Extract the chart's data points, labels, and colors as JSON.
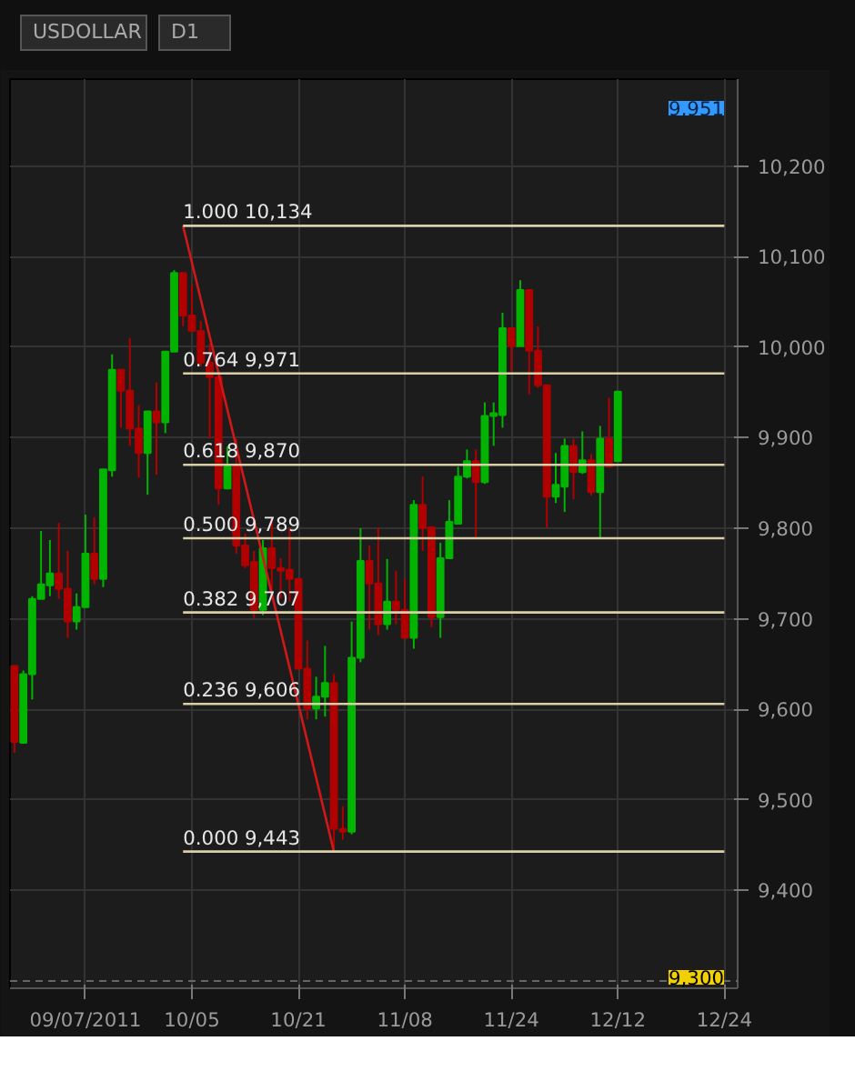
{
  "chart_data": {
    "type": "candlestick",
    "title": "USDOLLAR",
    "subtitle": "D1",
    "categories": [
      null,
      null,
      null,
      null,
      null,
      null,
      null,
      null,
      "09/07/2011",
      null,
      null,
      null,
      null,
      null,
      null,
      null,
      null,
      null,
      null,
      null,
      "10/05",
      null,
      null,
      null,
      null,
      null,
      null,
      null,
      null,
      null,
      null,
      null,
      "10/21",
      null,
      null,
      null,
      null,
      null,
      null,
      null,
      null,
      null,
      null,
      null,
      "11/08",
      null,
      null,
      null,
      null,
      null,
      null,
      null,
      null,
      null,
      null,
      null,
      "11/24",
      null,
      null,
      null,
      null,
      null,
      null,
      null,
      null,
      null,
      null,
      null,
      "12/12",
      null,
      null,
      null,
      null,
      null,
      null,
      null,
      null,
      null,
      null,
      null,
      "12/24"
    ],
    "ohlc": [
      [
        9648,
        9648,
        9552,
        9564
      ],
      [
        9563,
        9643,
        9563,
        9639
      ],
      [
        9639,
        9725,
        9611,
        9722
      ],
      [
        9722,
        9797,
        9722,
        9738
      ],
      [
        9737,
        9787,
        9725,
        9750
      ],
      [
        9750,
        9806,
        9722,
        9733
      ],
      [
        9733,
        9775,
        9679,
        9697
      ],
      [
        9697,
        9728,
        9688,
        9713
      ],
      [
        9713,
        9815,
        9713,
        9772
      ],
      [
        9772,
        9812,
        9738,
        9744
      ],
      [
        9744,
        9865,
        9735,
        9865
      ],
      [
        9864,
        9992,
        9857,
        9975
      ],
      [
        9975,
        9975,
        9911,
        9952
      ],
      [
        9952,
        10010,
        9891,
        9910
      ],
      [
        9910,
        9936,
        9856,
        9883
      ],
      [
        9883,
        9929,
        9837,
        9929
      ],
      [
        9929,
        9961,
        9859,
        9917
      ],
      [
        9917,
        9995,
        9905,
        9995
      ],
      [
        9995,
        10085,
        9995,
        10082
      ],
      [
        10082,
        10082,
        10023,
        10035
      ],
      [
        10035,
        10069,
        10017,
        10018
      ],
      [
        10018,
        10029,
        9979,
        9983
      ],
      [
        9983,
        10004,
        9899,
        9967
      ],
      [
        9967,
        9967,
        9826,
        9844
      ],
      [
        9844,
        9890,
        9843,
        9868
      ],
      [
        9868,
        9899,
        9772,
        9781
      ],
      [
        9781,
        9794,
        9756,
        9759
      ],
      [
        9763,
        9775,
        9701,
        9710
      ],
      [
        9710,
        9787,
        9704,
        9778
      ],
      [
        9778,
        9812,
        9725,
        9756
      ],
      [
        9756,
        9767,
        9722,
        9753
      ],
      [
        9754,
        9800,
        9719,
        9744
      ],
      [
        9744,
        9744,
        9645,
        9645
      ],
      [
        9645,
        9676,
        9589,
        9601
      ],
      [
        9601,
        9636,
        9589,
        9614
      ],
      [
        9614,
        9670,
        9592,
        9629
      ],
      [
        9629,
        9639,
        9443,
        9468
      ],
      [
        9468,
        9493,
        9456,
        9465
      ],
      [
        9465,
        9697,
        9462,
        9657
      ],
      [
        9657,
        9800,
        9652,
        9764
      ],
      [
        9764,
        9781,
        9688,
        9739
      ],
      [
        9739,
        9801,
        9682,
        9694
      ],
      [
        9694,
        9766,
        9688,
        9719
      ],
      [
        9719,
        9753,
        9694,
        9710
      ],
      [
        9710,
        9744,
        9679,
        9679
      ],
      [
        9679,
        9831,
        9667,
        9826
      ],
      [
        9826,
        9857,
        9775,
        9800
      ],
      [
        9801,
        9801,
        9691,
        9702
      ],
      [
        9702,
        9784,
        9679,
        9767
      ],
      [
        9767,
        9831,
        9766,
        9807
      ],
      [
        9805,
        9868,
        9805,
        9857
      ],
      [
        9857,
        9887,
        9855,
        9874
      ],
      [
        9874,
        9887,
        9790,
        9851
      ],
      [
        9851,
        9939,
        9849,
        9924
      ],
      [
        9924,
        9939,
        9891,
        9927
      ],
      [
        9925,
        10038,
        9911,
        10021
      ],
      [
        10021,
        10021,
        9973,
        10001
      ],
      [
        10001,
        10074,
        10001,
        10063
      ],
      [
        10063,
        10063,
        9948,
        9996
      ],
      [
        9996,
        10023,
        9955,
        9958
      ],
      [
        9958,
        9958,
        9801,
        9835
      ],
      [
        9835,
        9883,
        9828,
        9848
      ],
      [
        9846,
        9899,
        9818,
        9891
      ],
      [
        9891,
        9899,
        9832,
        9862
      ],
      [
        9862,
        9907,
        9860,
        9875
      ],
      [
        9875,
        9882,
        9836,
        9840
      ],
      [
        9840,
        9913,
        9789,
        9899
      ],
      [
        9899,
        9944,
        9868,
        9868
      ],
      [
        9874,
        9951,
        9874,
        9951
      ],
      null,
      null,
      null,
      null,
      null,
      null,
      null,
      null,
      null,
      null,
      null,
      null
    ],
    "series": [
      {
        "type": "line",
        "color": "#d01818",
        "values": [
          null,
          null,
          null,
          null,
          null,
          null,
          null,
          null,
          null,
          null,
          null,
          null,
          null,
          null,
          null,
          null,
          null,
          null,
          null,
          10134,
          null,
          null,
          null,
          null,
          null,
          null,
          null,
          null,
          null,
          null,
          null,
          null,
          null,
          null,
          null,
          null,
          9443,
          null,
          null,
          null,
          null,
          null,
          null,
          null,
          null,
          null,
          null,
          null,
          null,
          null,
          null,
          null,
          null,
          null,
          null,
          null,
          null,
          null,
          null,
          null,
          null,
          null,
          null,
          null,
          null,
          null,
          null,
          null,
          null,
          null,
          null,
          null,
          null,
          null,
          null,
          null,
          null,
          null,
          null,
          null,
          null
        ]
      },
      {
        "type": "line",
        "name": "1.000 10,134",
        "color": "#d8cfa8",
        "values": [
          null,
          null,
          null,
          null,
          null,
          null,
          null,
          null,
          null,
          null,
          null,
          null,
          null,
          null,
          null,
          null,
          null,
          null,
          null,
          10134,
          10134,
          10134,
          10134,
          10134,
          10134,
          10134,
          10134,
          10134,
          10134,
          10134,
          10134,
          10134,
          10134,
          10134,
          10134,
          10134,
          10134,
          10134,
          10134,
          10134,
          10134,
          10134,
          10134,
          10134,
          10134,
          10134,
          10134,
          10134,
          10134,
          10134,
          10134,
          10134,
          10134,
          10134,
          10134,
          10134,
          10134,
          10134,
          10134,
          10134,
          10134,
          10134,
          10134,
          10134,
          10134,
          10134,
          10134,
          10134,
          10134,
          10134,
          10134,
          10134,
          10134,
          10134,
          10134,
          10134,
          10134,
          10134,
          10134,
          10134,
          10134
        ]
      },
      {
        "type": "line",
        "name": "0.764 9,971",
        "color": "#d8cfa8",
        "values": [
          null,
          null,
          null,
          null,
          null,
          null,
          null,
          null,
          null,
          null,
          null,
          null,
          null,
          null,
          null,
          null,
          null,
          null,
          null,
          9971,
          9971,
          9971,
          9971,
          9971,
          9971,
          9971,
          9971,
          9971,
          9971,
          9971,
          9971,
          9971,
          9971,
          9971,
          9971,
          9971,
          9971,
          9971,
          9971,
          9971,
          9971,
          9971,
          9971,
          9971,
          9971,
          9971,
          9971,
          9971,
          9971,
          9971,
          9971,
          9971,
          9971,
          9971,
          9971,
          9971,
          9971,
          9971,
          9971,
          9971,
          9971,
          9971,
          9971,
          9971,
          9971,
          9971,
          9971,
          9971,
          9971,
          9971,
          9971,
          9971,
          9971,
          9971,
          9971,
          9971,
          9971,
          9971,
          9971,
          9971,
          9971
        ]
      },
      {
        "type": "line",
        "name": "0.618 9,870",
        "color": "#d8cfa8",
        "values": [
          null,
          null,
          null,
          null,
          null,
          null,
          null,
          null,
          null,
          null,
          null,
          null,
          null,
          null,
          null,
          null,
          null,
          null,
          null,
          9870,
          9870,
          9870,
          9870,
          9870,
          9870,
          9870,
          9870,
          9870,
          9870,
          9870,
          9870,
          9870,
          9870,
          9870,
          9870,
          9870,
          9870,
          9870,
          9870,
          9870,
          9870,
          9870,
          9870,
          9870,
          9870,
          9870,
          9870,
          9870,
          9870,
          9870,
          9870,
          9870,
          9870,
          9870,
          9870,
          9870,
          9870,
          9870,
          9870,
          9870,
          9870,
          9870,
          9870,
          9870,
          9870,
          9870,
          9870,
          9870,
          9870,
          9870,
          9870,
          9870,
          9870,
          9870,
          9870,
          9870,
          9870,
          9870,
          9870,
          9870,
          9870
        ]
      },
      {
        "type": "line",
        "name": "0.500 9,789",
        "color": "#d8cfa8",
        "values": [
          null,
          null,
          null,
          null,
          null,
          null,
          null,
          null,
          null,
          null,
          null,
          null,
          null,
          null,
          null,
          null,
          null,
          null,
          null,
          9789,
          9789,
          9789,
          9789,
          9789,
          9789,
          9789,
          9789,
          9789,
          9789,
          9789,
          9789,
          9789,
          9789,
          9789,
          9789,
          9789,
          9789,
          9789,
          9789,
          9789,
          9789,
          9789,
          9789,
          9789,
          9789,
          9789,
          9789,
          9789,
          9789,
          9789,
          9789,
          9789,
          9789,
          9789,
          9789,
          9789,
          9789,
          9789,
          9789,
          9789,
          9789,
          9789,
          9789,
          9789,
          9789,
          9789,
          9789,
          9789,
          9789,
          9789,
          9789,
          9789,
          9789,
          9789,
          9789,
          9789,
          9789,
          9789,
          9789,
          9789,
          9789
        ]
      },
      {
        "type": "line",
        "name": "0.382 9,707",
        "color": "#d8cfa8",
        "values": [
          null,
          null,
          null,
          null,
          null,
          null,
          null,
          null,
          null,
          null,
          null,
          null,
          null,
          null,
          null,
          null,
          null,
          null,
          null,
          9707,
          9707,
          9707,
          9707,
          9707,
          9707,
          9707,
          9707,
          9707,
          9707,
          9707,
          9707,
          9707,
          9707,
          9707,
          9707,
          9707,
          9707,
          9707,
          9707,
          9707,
          9707,
          9707,
          9707,
          9707,
          9707,
          9707,
          9707,
          9707,
          9707,
          9707,
          9707,
          9707,
          9707,
          9707,
          9707,
          9707,
          9707,
          9707,
          9707,
          9707,
          9707,
          9707,
          9707,
          9707,
          9707,
          9707,
          9707,
          9707,
          9707,
          9707,
          9707,
          9707,
          9707,
          9707,
          9707,
          9707,
          9707,
          9707,
          9707,
          9707,
          9707
        ]
      },
      {
        "type": "line",
        "name": "0.236 9,606",
        "color": "#d8cfa8",
        "values": [
          null,
          null,
          null,
          null,
          null,
          null,
          null,
          null,
          null,
          null,
          null,
          null,
          null,
          null,
          null,
          null,
          null,
          null,
          null,
          9606,
          9606,
          9606,
          9606,
          9606,
          9606,
          9606,
          9606,
          9606,
          9606,
          9606,
          9606,
          9606,
          9606,
          9606,
          9606,
          9606,
          9606,
          9606,
          9606,
          9606,
          9606,
          9606,
          9606,
          9606,
          9606,
          9606,
          9606,
          9606,
          9606,
          9606,
          9606,
          9606,
          9606,
          9606,
          9606,
          9606,
          9606,
          9606,
          9606,
          9606,
          9606,
          9606,
          9606,
          9606,
          9606,
          9606,
          9606,
          9606,
          9606,
          9606,
          9606,
          9606,
          9606,
          9606,
          9606,
          9606,
          9606,
          9606,
          9606,
          9606,
          9606
        ]
      },
      {
        "type": "line",
        "name": "0.000 9,443",
        "color": "#d8cfa8",
        "values": [
          null,
          null,
          null,
          null,
          null,
          null,
          null,
          null,
          null,
          null,
          null,
          null,
          null,
          null,
          null,
          null,
          null,
          null,
          null,
          9443,
          9443,
          9443,
          9443,
          9443,
          9443,
          9443,
          9443,
          9443,
          9443,
          9443,
          9443,
          9443,
          9443,
          9443,
          9443,
          9443,
          9443,
          9443,
          9443,
          9443,
          9443,
          9443,
          9443,
          9443,
          9443,
          9443,
          9443,
          9443,
          9443,
          9443,
          9443,
          9443,
          9443,
          9443,
          9443,
          9443,
          9443,
          9443,
          9443,
          9443,
          9443,
          9443,
          9443,
          9443,
          9443,
          9443,
          9443,
          9443,
          9443,
          9443,
          9443,
          9443,
          9443,
          9443,
          9443,
          9443,
          9443,
          9443,
          9443,
          9443,
          9443
        ]
      }
    ],
    "ylim": [
      9292,
      10296
    ],
    "yticks": [
      {
        "value": 9400,
        "label": "9,400"
      },
      {
        "value": 9500,
        "label": "9,500"
      },
      {
        "value": 9600,
        "label": "9,600"
      },
      {
        "value": 9700,
        "label": "9,700"
      },
      {
        "value": 9800,
        "label": "9,800"
      },
      {
        "value": 9900,
        "label": "9,900"
      },
      {
        "value": 10000,
        "label": "10,000"
      },
      {
        "value": 10100,
        "label": "10,100"
      },
      {
        "value": 10200,
        "label": "10,200"
      }
    ],
    "ref_lines": [
      {
        "axis": "y",
        "value": 9300,
        "label": "9,300",
        "line_style": "dashed"
      }
    ],
    "annotations": [
      "9,951"
    ],
    "grid": true
  }
}
